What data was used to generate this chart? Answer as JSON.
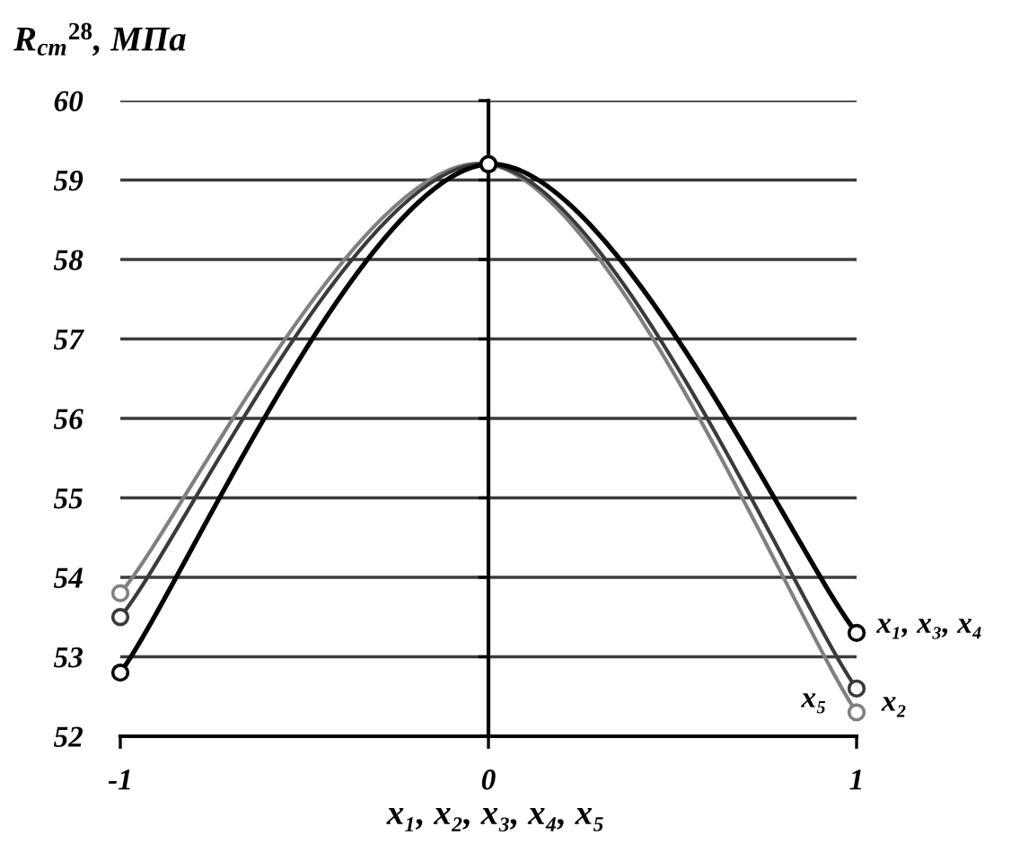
{
  "chart_data": {
    "type": "line",
    "xlabel": "x₁, x₂, x₃, x₄, x₅",
    "ylabel": "R$_{ст}$$^{28}$, МПа",
    "x": [
      -1,
      0,
      1
    ],
    "xlim": [
      -1,
      1
    ],
    "xticks": [
      -1,
      0,
      1
    ],
    "ylim": [
      52,
      60
    ],
    "yticks": [
      52,
      53,
      54,
      55,
      56,
      57,
      58,
      59,
      60
    ],
    "grid": "y",
    "legend": false,
    "marker": "circle",
    "line_style": "solid",
    "series": [
      {
        "name": "x₁, x₃, x₄",
        "color": "#000000",
        "values": [
          52.8,
          59.2,
          53.3
        ]
      },
      {
        "name": "x₂",
        "color": "#3a3a3a",
        "values": [
          53.5,
          59.2,
          52.6
        ]
      },
      {
        "name": "x₅",
        "color": "#808080",
        "values": [
          53.8,
          59.2,
          52.3
        ]
      }
    ]
  }
}
